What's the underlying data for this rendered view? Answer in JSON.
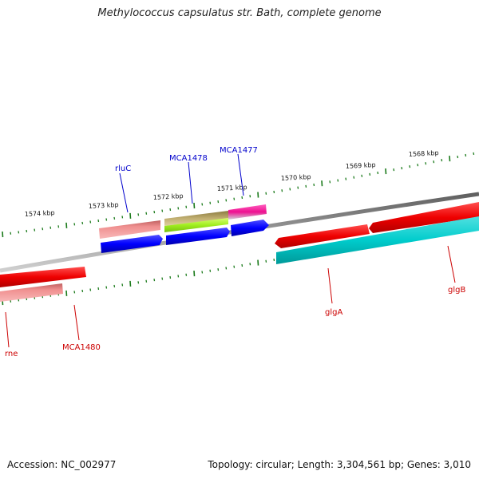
{
  "header": {
    "title": "Methylococcus capsulatus str. Bath, complete genome"
  },
  "footer": {
    "accession": "Accession: NC_002977",
    "summary": "Topology: circular; Length: 3,304,561 bp; Genes: 3,010"
  },
  "map": {
    "ruler_labels": [
      "1574 kbp",
      "1573 kbp",
      "1572 kbp",
      "1571 kbp",
      "1570 kbp",
      "1569 kbp",
      "1568 kbp"
    ],
    "forward_labels": [
      "rluC",
      "MCA1478",
      "MCA1477"
    ],
    "reverse_labels": [
      "rne",
      "MCA1480",
      "glgA",
      "glgB"
    ]
  },
  "colors": {
    "forward_label": "#0000cc",
    "reverse_label": "#cc0000",
    "tick": "#1a7a1a",
    "backbone": "#7a7a7a",
    "cds_forward": "#0000ff",
    "cds_reverse": "#ee0000",
    "gene_reverse": "#f08080",
    "cds_cyan": "#00cccc"
  }
}
